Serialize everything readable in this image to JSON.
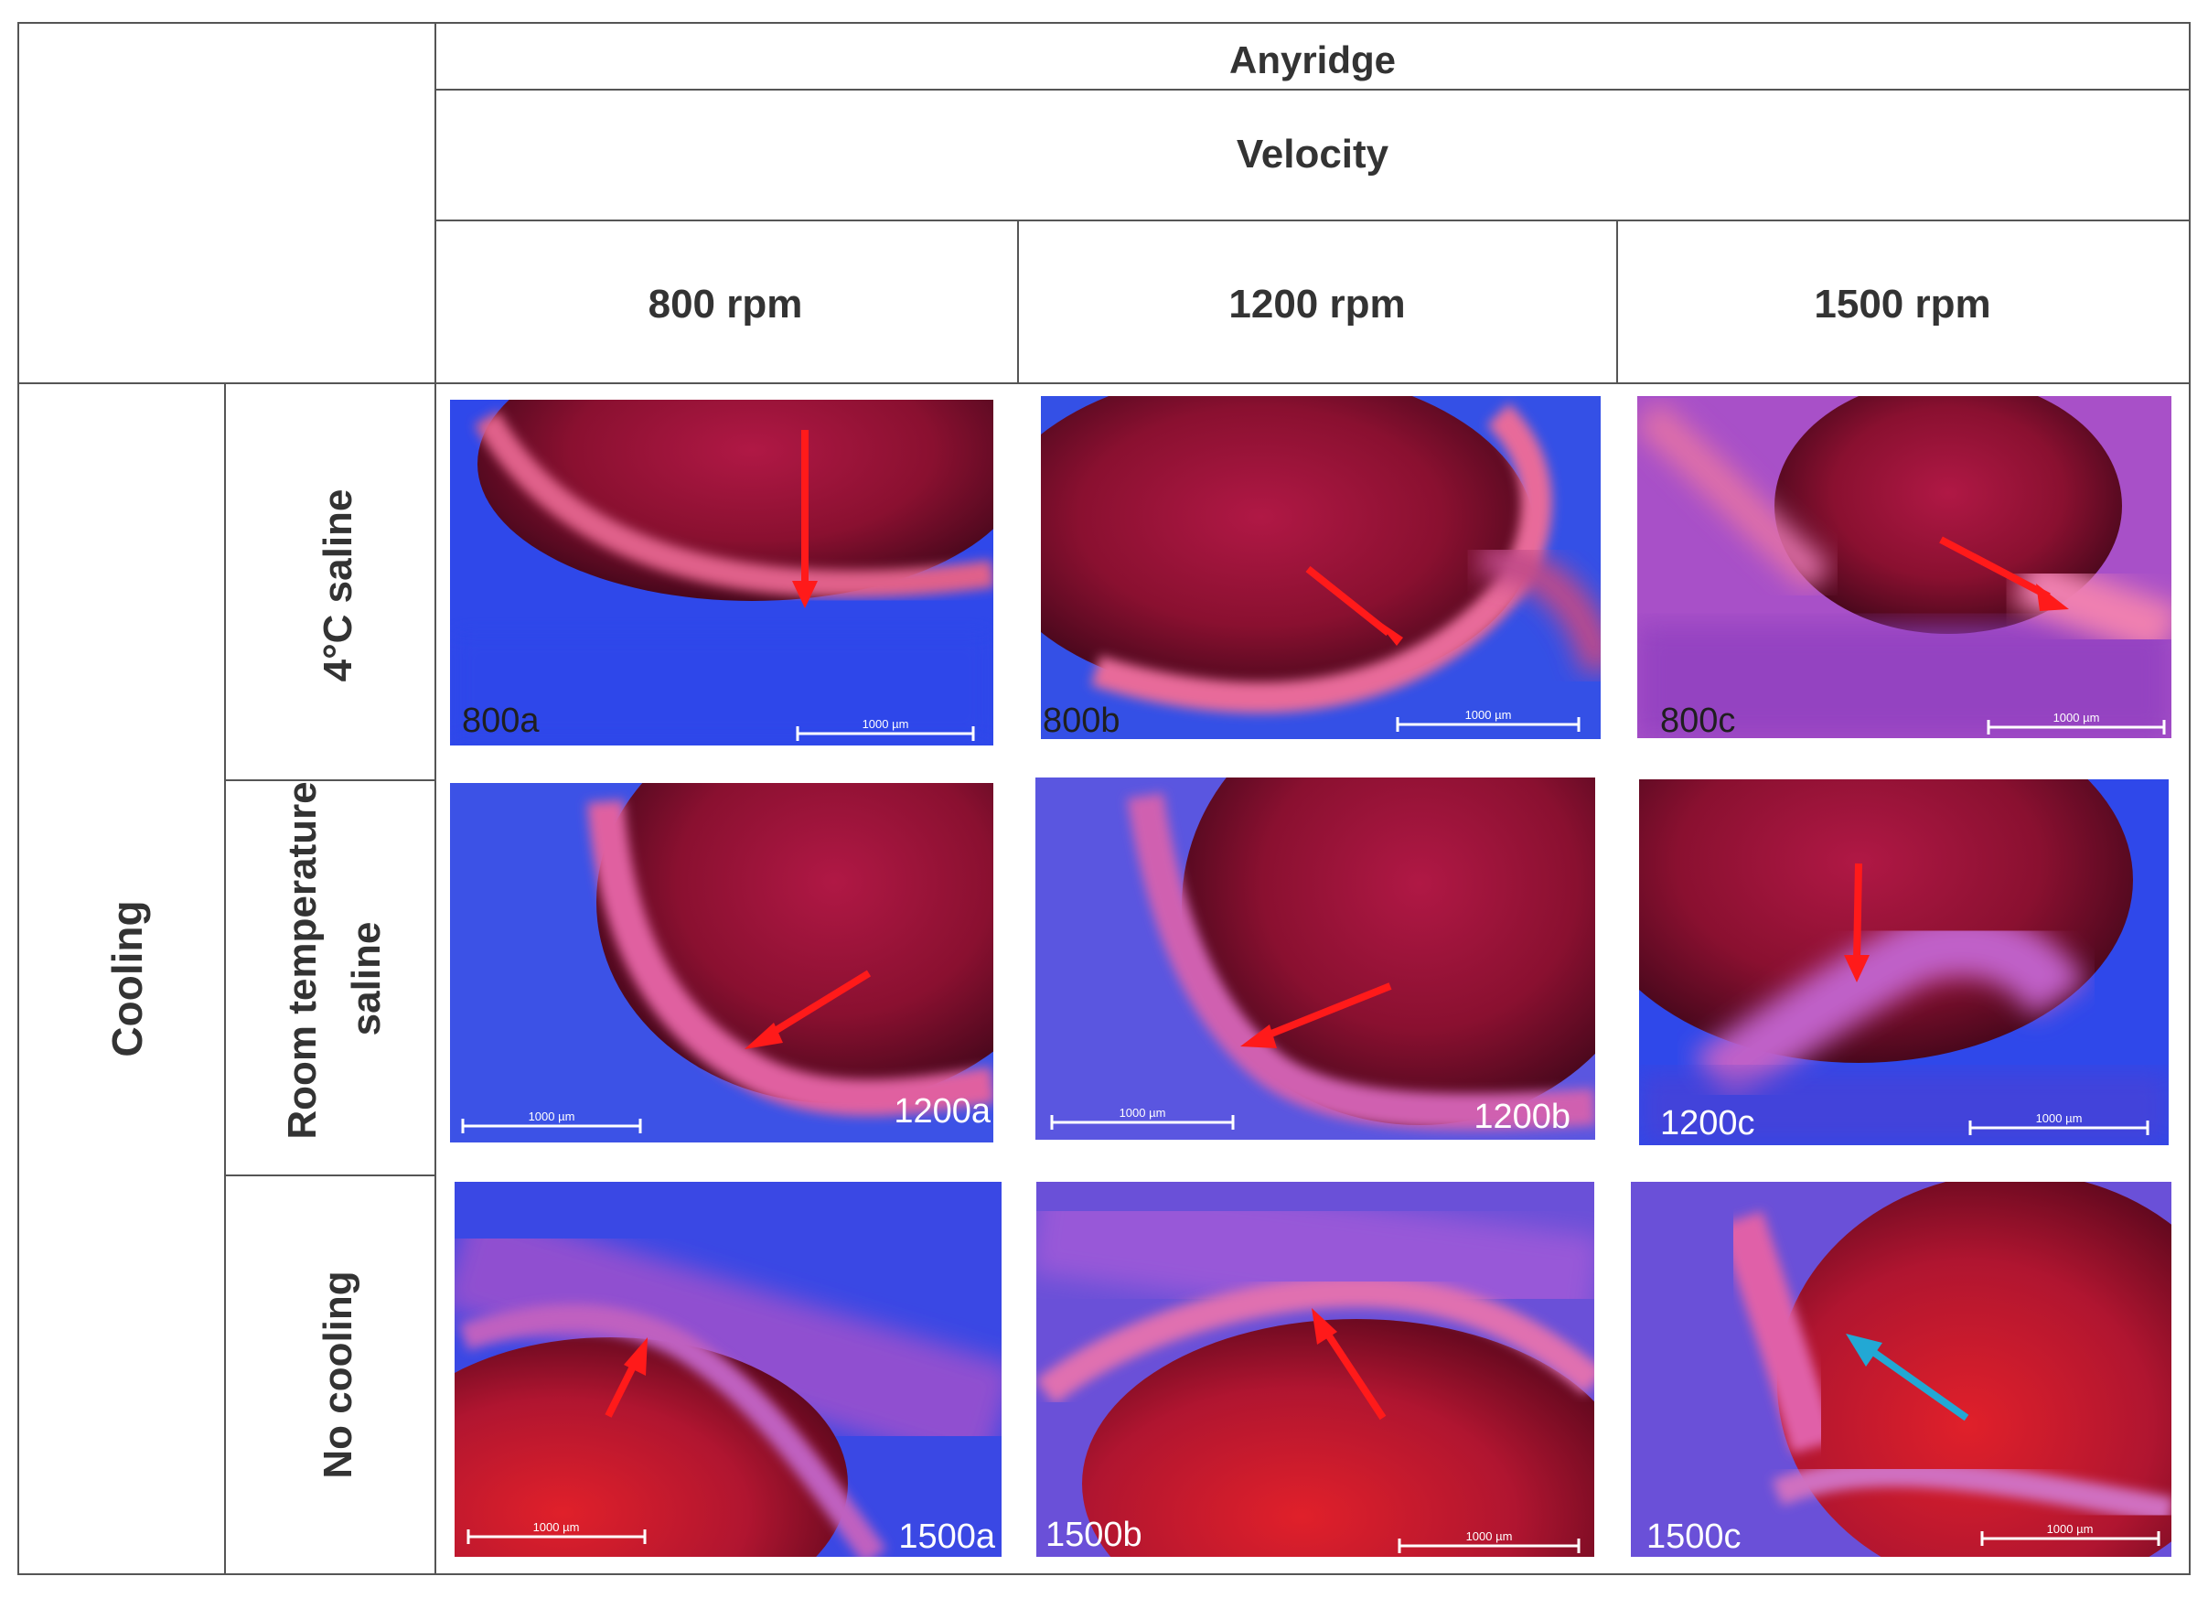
{
  "header": {
    "implant": "Anyridge",
    "variable": "Velocity",
    "columns": [
      "800 rpm",
      "1200 rpm",
      "1500 rpm"
    ]
  },
  "rows_group_label": "Cooling",
  "rows": [
    {
      "label_lines": [
        "4°C saline"
      ],
      "labels": [
        "800a",
        "800b",
        "800c"
      ]
    },
    {
      "label_lines": [
        "Room temperature",
        "saline"
      ],
      "labels": [
        "1200a",
        "1200b",
        "1200c"
      ]
    },
    {
      "label_lines": [
        "No cooling"
      ],
      "labels": [
        "1500a",
        "1500b",
        "1500c"
      ]
    }
  ],
  "scale_bar_text": "1000 µm",
  "colors": {
    "arrow_primary": "#ff1a1a",
    "arrow_highlight": "#22a8d4",
    "tissue": "#3355ee",
    "cavity": "#8a1030"
  }
}
